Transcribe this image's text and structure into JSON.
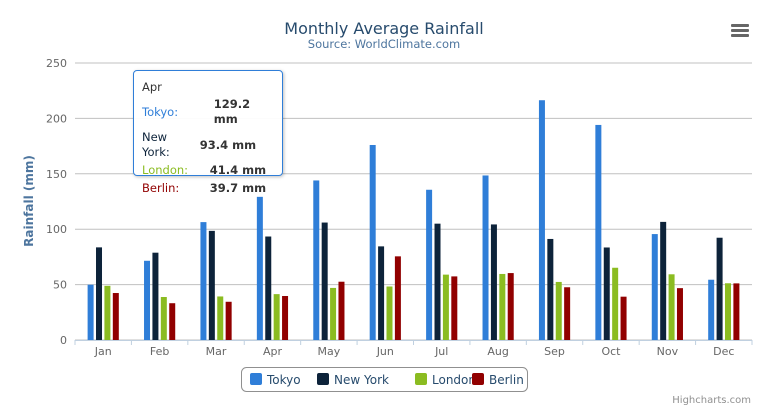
{
  "chart_data": {
    "type": "bar",
    "title": "Monthly Average Rainfall",
    "subtitle": "Source: WorldClimate.com",
    "xlabel": "",
    "ylabel": "Rainfall (mm)",
    "ylim": [
      0,
      250
    ],
    "yticks": [
      0,
      50,
      100,
      150,
      200,
      250
    ],
    "grid": true,
    "legend_position": "bottom",
    "categories": [
      "Jan",
      "Feb",
      "Mar",
      "Apr",
      "May",
      "Jun",
      "Jul",
      "Aug",
      "Sep",
      "Oct",
      "Nov",
      "Dec"
    ],
    "series": [
      {
        "name": "Tokyo",
        "color": "#2f7ed8",
        "values": [
          49.9,
          71.5,
          106.4,
          129.2,
          144.0,
          176.0,
          135.6,
          148.5,
          216.4,
          194.1,
          95.6,
          54.4
        ]
      },
      {
        "name": "New York",
        "color": "#0d233a",
        "values": [
          83.6,
          78.8,
          98.5,
          93.4,
          106.0,
          84.5,
          105.0,
          104.3,
          91.2,
          83.5,
          106.6,
          92.3
        ]
      },
      {
        "name": "London",
        "color": "#8bbc21",
        "values": [
          48.9,
          38.8,
          39.3,
          41.4,
          47.0,
          48.3,
          59.0,
          59.6,
          52.4,
          65.2,
          59.3,
          51.2
        ]
      },
      {
        "name": "Berlin",
        "color": "#910000",
        "values": [
          42.4,
          33.2,
          34.5,
          39.7,
          52.6,
          75.5,
          57.4,
          60.4,
          47.6,
          39.1,
          46.8,
          51.1
        ]
      }
    ]
  },
  "tooltip": {
    "header": "Apr",
    "rows": [
      {
        "label": "Tokyo:",
        "value": "129.2 mm",
        "color": "#2f7ed8"
      },
      {
        "label": "New York:",
        "value": "93.4 mm",
        "color": "#0d233a"
      },
      {
        "label": "London:",
        "value": "41.4 mm",
        "color": "#8bbc21"
      },
      {
        "label": "Berlin:",
        "value": "39.7 mm",
        "color": "#910000"
      }
    ]
  },
  "credits": "Highcharts.com",
  "menu_icon": "hamburger-menu-icon"
}
